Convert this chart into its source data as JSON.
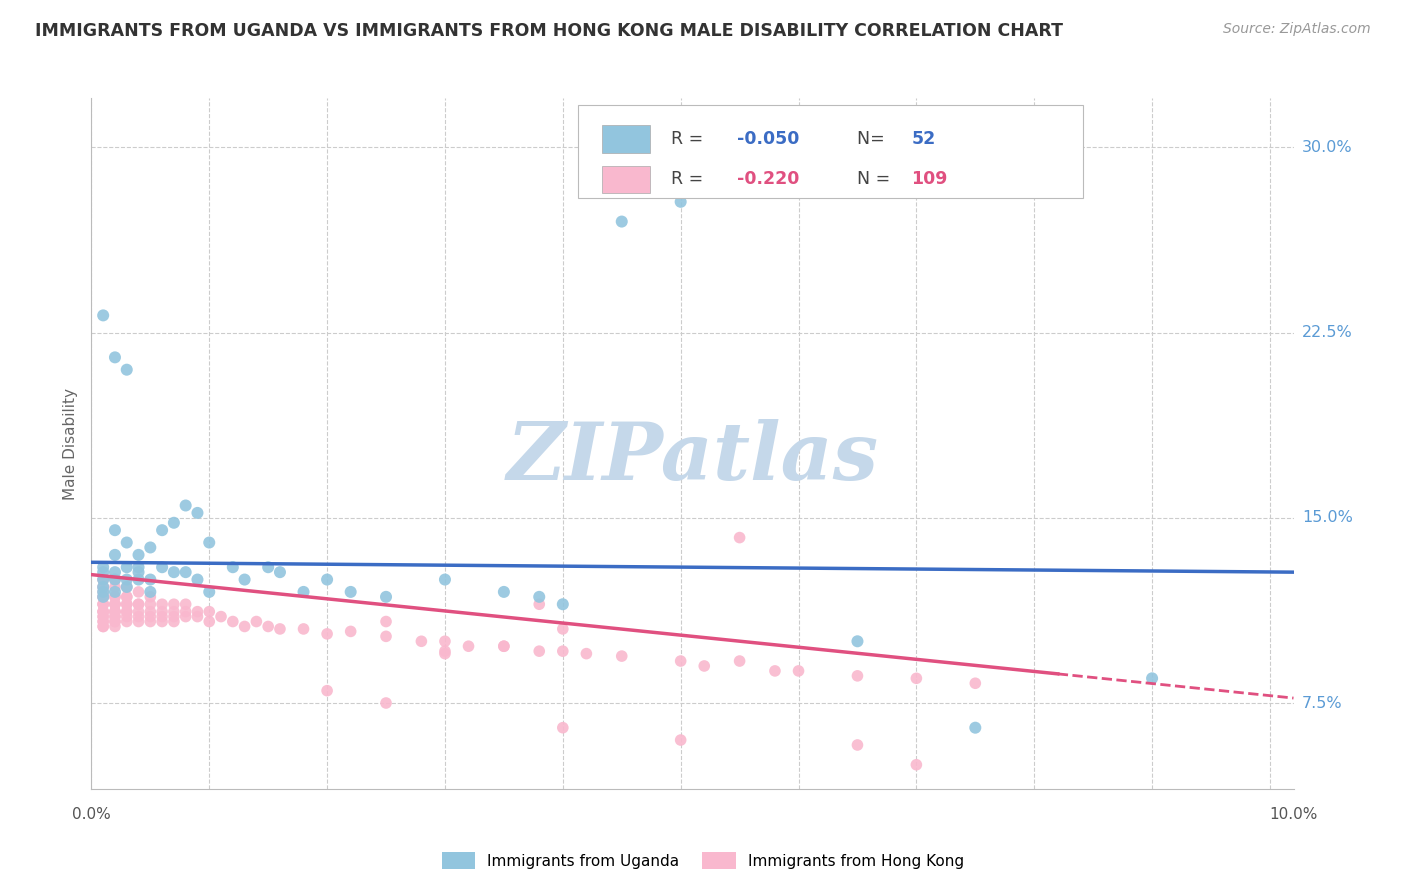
{
  "title": "IMMIGRANTS FROM UGANDA VS IMMIGRANTS FROM HONG KONG MALE DISABILITY CORRELATION CHART",
  "source": "Source: ZipAtlas.com",
  "ylabel": "Male Disability",
  "ylim": [
    0.04,
    0.32
  ],
  "xlim": [
    0.0,
    0.102
  ],
  "yticks": [
    0.075,
    0.15,
    0.225,
    0.3
  ],
  "ytick_labels": [
    "7.5%",
    "15.0%",
    "22.5%",
    "30.0%"
  ],
  "xtick_left_label": "0.0%",
  "xtick_right_label": "10.0%",
  "color_uganda_scatter": "#92C5DE",
  "color_hk_scatter": "#F9B8CE",
  "color_line_uganda": "#3B6CC4",
  "color_line_hk": "#E05080",
  "color_grid": "#CCCCCC",
  "color_title": "#333333",
  "color_source": "#999999",
  "color_ylabel": "#666666",
  "color_ytick": "#5B9BD5",
  "color_legend_r_blue": "#3B6CC4",
  "color_legend_r_pink": "#E05080",
  "watermark_text": "ZIPatlas",
  "watermark_color": "#C5D8EA",
  "legend1_label": "Immigrants from Uganda",
  "legend2_label": "Immigrants from Hong Kong",
  "uganda_x": [
    0.001,
    0.001,
    0.001,
    0.001,
    0.001,
    0.001,
    0.002,
    0.002,
    0.002,
    0.002,
    0.002,
    0.003,
    0.003,
    0.003,
    0.003,
    0.004,
    0.004,
    0.004,
    0.004,
    0.005,
    0.005,
    0.005,
    0.006,
    0.006,
    0.007,
    0.007,
    0.008,
    0.008,
    0.009,
    0.009,
    0.01,
    0.01,
    0.012,
    0.013,
    0.015,
    0.016,
    0.018,
    0.02,
    0.022,
    0.025,
    0.03,
    0.035,
    0.038,
    0.04,
    0.001,
    0.002,
    0.003,
    0.045,
    0.05,
    0.065,
    0.075,
    0.09
  ],
  "uganda_y": [
    0.125,
    0.13,
    0.128,
    0.122,
    0.12,
    0.118,
    0.145,
    0.135,
    0.128,
    0.125,
    0.12,
    0.14,
    0.13,
    0.125,
    0.122,
    0.135,
    0.128,
    0.125,
    0.13,
    0.138,
    0.125,
    0.12,
    0.145,
    0.13,
    0.148,
    0.128,
    0.155,
    0.128,
    0.152,
    0.125,
    0.14,
    0.12,
    0.13,
    0.125,
    0.13,
    0.128,
    0.12,
    0.125,
    0.12,
    0.118,
    0.125,
    0.12,
    0.118,
    0.115,
    0.232,
    0.215,
    0.21,
    0.27,
    0.278,
    0.1,
    0.065,
    0.085
  ],
  "hk_x": [
    0.001,
    0.001,
    0.001,
    0.001,
    0.001,
    0.001,
    0.001,
    0.001,
    0.001,
    0.001,
    0.001,
    0.001,
    0.001,
    0.001,
    0.001,
    0.001,
    0.001,
    0.001,
    0.001,
    0.001,
    0.002,
    0.002,
    0.002,
    0.002,
    0.002,
    0.002,
    0.002,
    0.002,
    0.002,
    0.002,
    0.002,
    0.002,
    0.002,
    0.002,
    0.002,
    0.003,
    0.003,
    0.003,
    0.003,
    0.003,
    0.003,
    0.003,
    0.003,
    0.003,
    0.004,
    0.004,
    0.004,
    0.004,
    0.004,
    0.004,
    0.005,
    0.005,
    0.005,
    0.005,
    0.005,
    0.006,
    0.006,
    0.006,
    0.006,
    0.007,
    0.007,
    0.007,
    0.007,
    0.008,
    0.008,
    0.008,
    0.009,
    0.009,
    0.01,
    0.01,
    0.011,
    0.012,
    0.013,
    0.014,
    0.015,
    0.016,
    0.018,
    0.02,
    0.022,
    0.025,
    0.028,
    0.03,
    0.032,
    0.035,
    0.038,
    0.04,
    0.042,
    0.045,
    0.05,
    0.052,
    0.055,
    0.058,
    0.06,
    0.065,
    0.07,
    0.075,
    0.055,
    0.04,
    0.038,
    0.025,
    0.03,
    0.035,
    0.03,
    0.02,
    0.025,
    0.04,
    0.05,
    0.065,
    0.07
  ],
  "hk_y": [
    0.125,
    0.122,
    0.12,
    0.118,
    0.115,
    0.112,
    0.11,
    0.108,
    0.106,
    0.125,
    0.122,
    0.118,
    0.115,
    0.112,
    0.11,
    0.108,
    0.106,
    0.115,
    0.118,
    0.112,
    0.125,
    0.122,
    0.118,
    0.115,
    0.112,
    0.11,
    0.108,
    0.115,
    0.112,
    0.118,
    0.11,
    0.108,
    0.106,
    0.115,
    0.112,
    0.122,
    0.118,
    0.115,
    0.112,
    0.11,
    0.108,
    0.115,
    0.112,
    0.118,
    0.12,
    0.115,
    0.112,
    0.11,
    0.108,
    0.115,
    0.118,
    0.115,
    0.112,
    0.11,
    0.108,
    0.115,
    0.112,
    0.11,
    0.108,
    0.115,
    0.112,
    0.11,
    0.108,
    0.115,
    0.112,
    0.11,
    0.112,
    0.11,
    0.112,
    0.108,
    0.11,
    0.108,
    0.106,
    0.108,
    0.106,
    0.105,
    0.105,
    0.103,
    0.104,
    0.102,
    0.1,
    0.1,
    0.098,
    0.098,
    0.096,
    0.096,
    0.095,
    0.094,
    0.092,
    0.09,
    0.092,
    0.088,
    0.088,
    0.086,
    0.085,
    0.083,
    0.142,
    0.105,
    0.115,
    0.108,
    0.096,
    0.098,
    0.095,
    0.08,
    0.075,
    0.065,
    0.06,
    0.058,
    0.05
  ],
  "ug_trend_x0": 0.0,
  "ug_trend_x1": 0.102,
  "ug_trend_y0": 0.132,
  "ug_trend_y1": 0.128,
  "hk_trend_x0": 0.0,
  "hk_trend_x1": 0.102,
  "hk_trend_y0": 0.127,
  "hk_trend_y1": 0.077
}
